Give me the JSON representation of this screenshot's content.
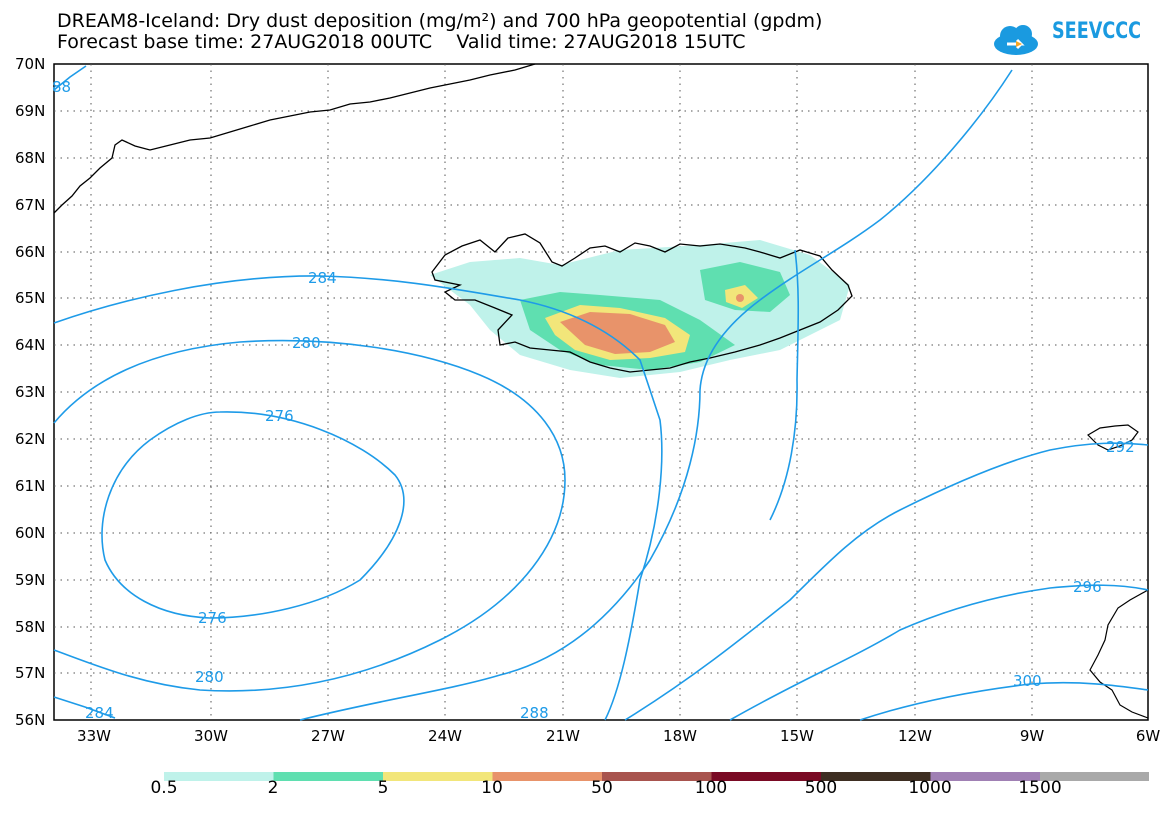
{
  "title": {
    "line1": "DREAM8-Iceland: Dry dust deposition (mg/m²) and 700 hPa geopotential (gpdm)",
    "line2": "Forecast base time: 27AUG2018 00UTC    Valid time: 27AUG2018 15UTC"
  },
  "logo": {
    "text": "SEEVCCC",
    "color": "#1a9ae0"
  },
  "map": {
    "lat_labels": [
      "70N",
      "69N",
      "68N",
      "67N",
      "66N",
      "65N",
      "64N",
      "63N",
      "62N",
      "61N",
      "60N",
      "59N",
      "58N",
      "57N",
      "56N"
    ],
    "lon_labels": [
      "33W",
      "30W",
      "27W",
      "24W",
      "21W",
      "18W",
      "15W",
      "12W",
      "9W",
      "6W"
    ],
    "contour_color": "#1e9be8",
    "contour_labels": [
      "88",
      "284",
      "280",
      "276",
      "276",
      "280",
      "284",
      "288",
      "292",
      "296",
      "300"
    ]
  },
  "colorbar": {
    "labels": [
      "0.5",
      "2",
      "5",
      "10",
      "50",
      "100",
      "500",
      "1000",
      "1500"
    ],
    "colors": [
      "#bff2ea",
      "#5fdfb0",
      "#f2e67a",
      "#e8936a",
      "#a8544e",
      "#7a0a24",
      "#3e2e22",
      "#a080b4",
      "#a9a9a9"
    ]
  }
}
